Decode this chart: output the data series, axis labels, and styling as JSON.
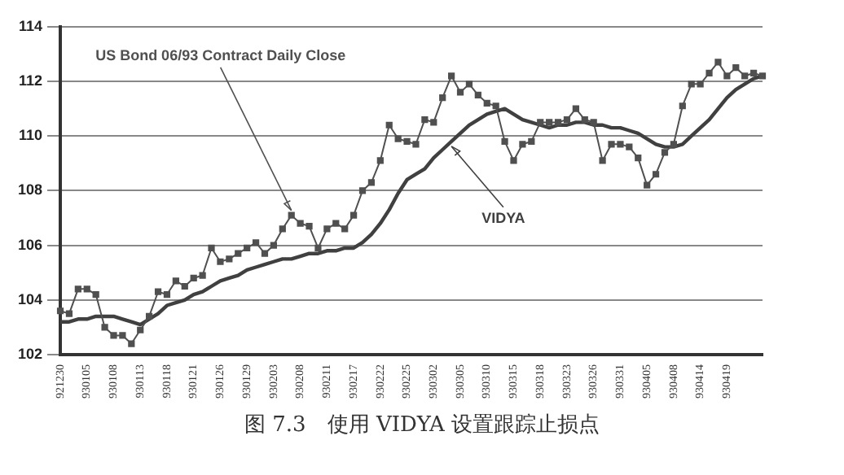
{
  "chart_data": {
    "type": "line",
    "title": "图 7.3　使用 VIDYA 设置跟踪止损点",
    "categories": [
      "921230",
      null,
      null,
      "930105",
      null,
      null,
      "930108",
      null,
      null,
      "930113",
      null,
      null,
      "930118",
      null,
      null,
      "930121",
      null,
      null,
      "930126",
      null,
      null,
      "930129",
      null,
      null,
      "930203",
      null,
      null,
      "930208",
      null,
      null,
      "930211",
      null,
      null,
      "930217",
      null,
      null,
      "930222",
      null,
      null,
      "930225",
      null,
      null,
      "930302",
      null,
      null,
      "930305",
      null,
      null,
      "930310",
      null,
      null,
      "930315",
      null,
      null,
      "930318",
      null,
      null,
      "930323",
      null,
      null,
      "930326",
      null,
      null,
      "930331",
      null,
      null,
      "930405",
      null,
      null,
      "930408",
      null,
      null,
      "930414",
      null,
      null,
      "930419",
      null,
      null,
      null,
      null
    ],
    "series": [
      {
        "name": "US Bond 06/93 Contract Daily Close",
        "color": "#505050",
        "marker": "square",
        "values": [
          103.6,
          103.5,
          104.4,
          104.4,
          104.2,
          103.0,
          102.7,
          102.7,
          102.4,
          102.9,
          103.4,
          104.3,
          104.2,
          104.7,
          104.5,
          104.8,
          104.9,
          105.9,
          105.4,
          105.5,
          105.7,
          105.9,
          106.1,
          105.7,
          106.0,
          106.6,
          107.1,
          106.8,
          106.7,
          105.9,
          106.6,
          106.8,
          106.6,
          107.1,
          108.0,
          108.3,
          109.1,
          110.4,
          109.9,
          109.8,
          109.7,
          110.6,
          110.5,
          111.4,
          112.2,
          111.6,
          111.9,
          111.5,
          111.2,
          111.1,
          109.8,
          109.1,
          109.7,
          109.8,
          110.5,
          110.5,
          110.5,
          110.6,
          111.0,
          110.6,
          110.5,
          109.1,
          109.7,
          109.7,
          109.6,
          109.2,
          108.2,
          108.6,
          109.4,
          109.7,
          111.1,
          111.9,
          111.9,
          112.3,
          112.7,
          112.2,
          112.5,
          112.2,
          112.3,
          112.2
        ]
      },
      {
        "name": "VIDYA",
        "color": "#404040",
        "marker": "none",
        "values": [
          103.2,
          103.2,
          103.3,
          103.3,
          103.4,
          103.4,
          103.4,
          103.3,
          103.2,
          103.1,
          103.3,
          103.5,
          103.8,
          103.9,
          104.0,
          104.2,
          104.3,
          104.5,
          104.7,
          104.8,
          104.9,
          105.1,
          105.2,
          105.3,
          105.4,
          105.5,
          105.5,
          105.6,
          105.7,
          105.7,
          105.8,
          105.8,
          105.9,
          105.9,
          106.1,
          106.4,
          106.8,
          107.3,
          107.9,
          108.4,
          108.6,
          108.8,
          109.2,
          109.5,
          109.8,
          110.1,
          110.4,
          110.6,
          110.8,
          110.9,
          111.0,
          110.8,
          110.6,
          110.5,
          110.4,
          110.3,
          110.4,
          110.4,
          110.5,
          110.5,
          110.4,
          110.4,
          110.3,
          110.3,
          110.2,
          110.1,
          109.9,
          109.7,
          109.6,
          109.6,
          109.7,
          110.0,
          110.3,
          110.6,
          111.0,
          111.4,
          111.7,
          111.9,
          112.1,
          112.2
        ]
      }
    ],
    "ylim": [
      102,
      114
    ],
    "yticks": [
      102,
      104,
      106,
      108,
      110,
      112,
      114
    ],
    "grid": "y",
    "legend": false
  }
}
